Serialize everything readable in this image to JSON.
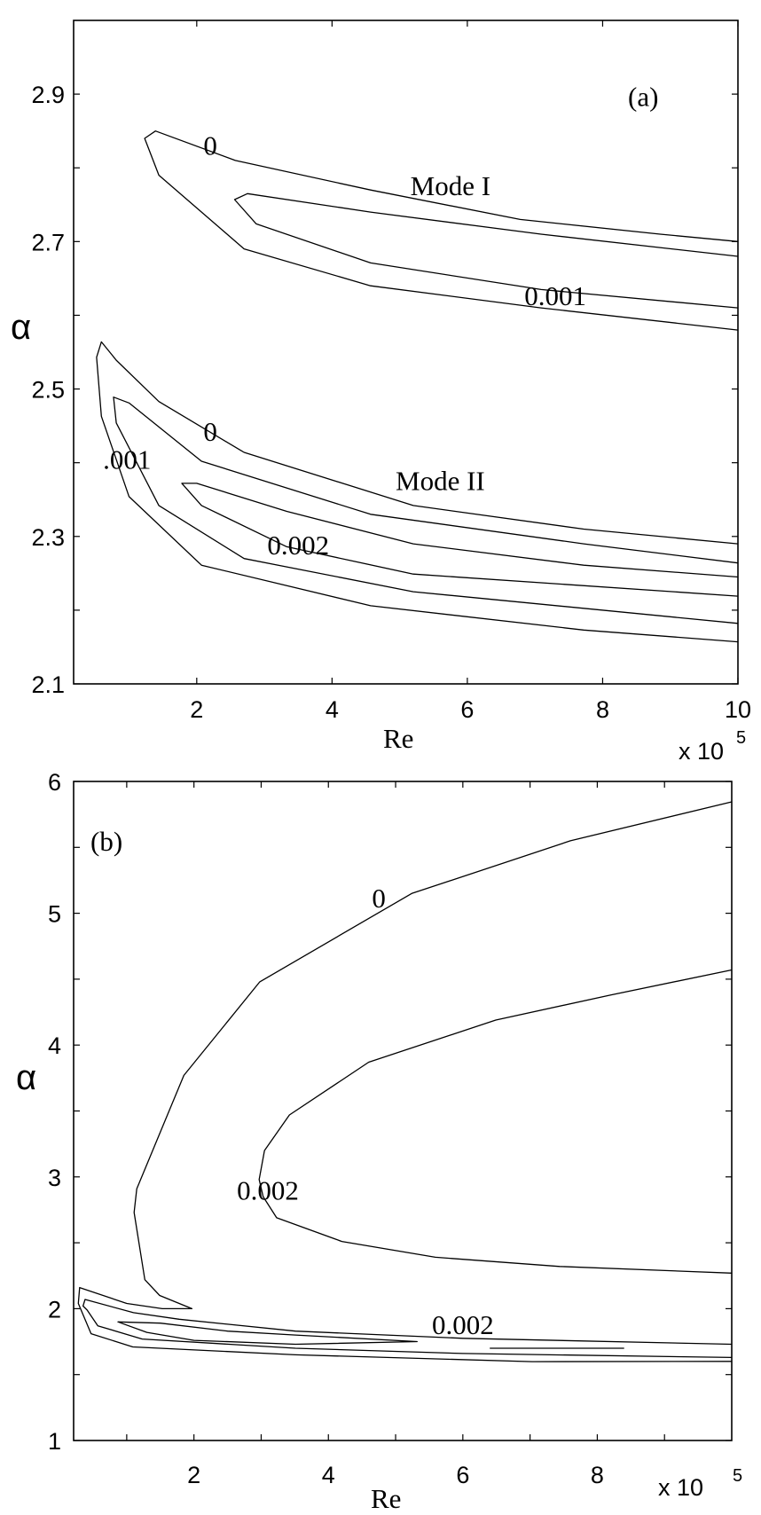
{
  "chart_data": [
    {
      "id": "a",
      "type": "contour",
      "panel_label": "(a)",
      "xlabel": "Re",
      "ylabel": "α",
      "x_multiplier": "x 10",
      "x_multiplier_exp": "5",
      "xlim": [
        0.18,
        10
      ],
      "ylim": [
        2.1,
        3.0
      ],
      "xticks": [
        2,
        4,
        6,
        8,
        10
      ],
      "xtick_labels": [
        "2",
        "4",
        "6",
        "8",
        "10"
      ],
      "yticks": [
        2.1,
        2.2,
        2.3,
        2.4,
        2.5,
        2.6,
        2.7,
        2.8,
        2.9
      ],
      "ytick_labels": [
        "2.1",
        "",
        "2.3",
        "",
        "2.5",
        "",
        "2.7",
        "",
        "2.9"
      ],
      "grid": false,
      "annotations": [
        {
          "text": "(a)",
          "x": 8.6,
          "y": 2.897
        },
        {
          "text": "0",
          "x": 2.2,
          "y": 2.831
        },
        {
          "text": "Mode I",
          "x": 5.75,
          "y": 2.776
        },
        {
          "text": "0.001",
          "x": 7.3,
          "y": 2.627
        },
        {
          "text": "0",
          "x": 2.2,
          "y": 2.443
        },
        {
          "text": ".001",
          "x": 0.97,
          "y": 2.405
        },
        {
          "text": "Mode II",
          "x": 5.6,
          "y": 2.376
        },
        {
          "text": "0.002",
          "x": 3.5,
          "y": 2.289
        }
      ],
      "contours": [
        {
          "mode": "Mode I",
          "level": "0",
          "closed": false,
          "points": [
            [
              10,
              2.7
            ],
            [
              8.85,
              2.71
            ],
            [
              6.78,
              2.73
            ],
            [
              4.57,
              2.77
            ],
            [
              2.57,
              2.81
            ],
            [
              1.39,
              2.85
            ],
            [
              1.23,
              2.84
            ],
            [
              1.44,
              2.79
            ],
            [
              2.7,
              2.69
            ],
            [
              4.57,
              2.64
            ],
            [
              7.09,
              2.61
            ],
            [
              10,
              2.58
            ]
          ]
        },
        {
          "mode": "Mode I",
          "level": "0.001",
          "closed": false,
          "points": [
            [
              10,
              2.68
            ],
            [
              7.09,
              2.71
            ],
            [
              4.57,
              2.74
            ],
            [
              2.75,
              2.765
            ],
            [
              2.56,
              2.757
            ],
            [
              2.88,
              2.724
            ],
            [
              4.57,
              2.671
            ],
            [
              7.09,
              2.635
            ],
            [
              10,
              2.61
            ]
          ]
        },
        {
          "mode": "Mode II",
          "level": "0",
          "closed": false,
          "points": [
            [
              10,
              2.29
            ],
            [
              7.72,
              2.31
            ],
            [
              5.2,
              2.342
            ],
            [
              2.7,
              2.414
            ],
            [
              1.44,
              2.483
            ],
            [
              0.81,
              2.539
            ],
            [
              0.59,
              2.564
            ],
            [
              0.52,
              2.543
            ],
            [
              0.59,
              2.463
            ],
            [
              1.0,
              2.354
            ],
            [
              2.07,
              2.261
            ],
            [
              4.57,
              2.206
            ],
            [
              7.72,
              2.173
            ],
            [
              10,
              2.157
            ]
          ]
        },
        {
          "mode": "Mode II",
          "level": "0.001",
          "closed": false,
          "points": [
            [
              10,
              2.264
            ],
            [
              7.72,
              2.29
            ],
            [
              4.57,
              2.33
            ],
            [
              2.07,
              2.402
            ],
            [
              1.0,
              2.481
            ],
            [
              0.77,
              2.489
            ],
            [
              0.81,
              2.454
            ],
            [
              1.44,
              2.342
            ],
            [
              2.7,
              2.27
            ],
            [
              5.2,
              2.225
            ],
            [
              10,
              2.182
            ]
          ]
        },
        {
          "mode": "Mode II",
          "level": "0.002",
          "closed": false,
          "points": [
            [
              10,
              2.245
            ],
            [
              7.72,
              2.261
            ],
            [
              5.2,
              2.29
            ],
            [
              3.33,
              2.334
            ],
            [
              2.0,
              2.372
            ],
            [
              1.78,
              2.372
            ],
            [
              2.07,
              2.342
            ],
            [
              3.33,
              2.286
            ],
            [
              5.2,
              2.249
            ],
            [
              10,
              2.219
            ]
          ]
        }
      ]
    },
    {
      "id": "b",
      "type": "contour",
      "panel_label": "(b)",
      "xlabel": "Re",
      "ylabel": "α",
      "x_multiplier": "x 10",
      "x_multiplier_exp": "5",
      "xlim": [
        0.21,
        10
      ],
      "ylim": [
        1,
        6
      ],
      "xticks": [
        1,
        2,
        3,
        4,
        5,
        6,
        7,
        8,
        9
      ],
      "xtick_labels": [
        "",
        "2",
        "",
        "4",
        "",
        "6",
        "",
        "8",
        ""
      ],
      "yticks": [
        1,
        1.5,
        2,
        2.5,
        3,
        3.5,
        4,
        4.5,
        5,
        5.5,
        6
      ],
      "ytick_labels": [
        "1",
        "",
        "2",
        "",
        "3",
        "",
        "4",
        "",
        "5",
        "",
        "6"
      ],
      "grid": false,
      "annotations": [
        {
          "text": "(b)",
          "x": 0.7,
          "y": 5.55
        },
        {
          "text": "0",
          "x": 4.75,
          "y": 5.12
        },
        {
          "text": "0.002",
          "x": 3.1,
          "y": 2.9
        },
        {
          "text": "0.002",
          "x": 6.0,
          "y": 1.88
        }
      ],
      "contours": [
        {
          "level": "0",
          "closed": false,
          "points": [
            [
              10,
              5.845
            ],
            [
              7.6,
              5.55
            ],
            [
              5.24,
              5.15
            ],
            [
              2.98,
              4.48
            ],
            [
              1.85,
              3.77
            ],
            [
              1.15,
              2.91
            ],
            [
              1.11,
              2.73
            ],
            [
              1.27,
              2.22
            ],
            [
              1.49,
              2.1
            ],
            [
              1.97,
              2.0
            ],
            [
              1.53,
              2.0
            ],
            [
              1.0,
              2.04
            ],
            [
              0.3,
              2.16
            ],
            [
              0.28,
              2.04
            ],
            [
              0.47,
              1.81
            ],
            [
              1.09,
              1.71
            ],
            [
              3.51,
              1.65
            ],
            [
              7.03,
              1.598
            ],
            [
              10,
              1.6
            ]
          ]
        },
        {
          "level": "0.002",
          "closed": false,
          "points": [
            [
              10,
              4.57
            ],
            [
              8.2,
              4.38
            ],
            [
              6.49,
              4.19
            ],
            [
              4.6,
              3.87
            ],
            [
              3.42,
              3.47
            ],
            [
              3.05,
              3.2
            ],
            [
              2.97,
              2.98
            ],
            [
              3.03,
              2.85
            ],
            [
              3.23,
              2.69
            ],
            [
              4.2,
              2.51
            ],
            [
              5.59,
              2.39
            ],
            [
              7.44,
              2.32
            ],
            [
              10,
              2.27
            ]
          ]
        },
        {
          "level": "0.002",
          "closed": false,
          "points": [
            [
              10,
              1.73
            ],
            [
              6.0,
              1.775
            ],
            [
              3.51,
              1.83
            ],
            [
              1.78,
              1.92
            ],
            [
              1.1,
              1.97
            ],
            [
              0.38,
              2.07
            ],
            [
              0.35,
              2.02
            ],
            [
              0.41,
              1.99
            ],
            [
              0.57,
              1.87
            ],
            [
              1.23,
              1.77
            ],
            [
              3.51,
              1.7
            ],
            [
              6.0,
              1.66
            ],
            [
              10,
              1.63
            ]
          ]
        },
        {
          "level": "0.002",
          "closed": true,
          "points": [
            [
              0.87,
              1.9
            ],
            [
              1.5,
              1.89
            ],
            [
              2.5,
              1.83
            ],
            [
              3.51,
              1.8
            ],
            [
              5.32,
              1.75
            ],
            [
              3.51,
              1.73
            ],
            [
              2.0,
              1.76
            ],
            [
              1.3,
              1.82
            ],
            [
              0.87,
              1.9
            ]
          ]
        },
        {
          "level": "0.002",
          "closed": false,
          "points": [
            [
              6.4,
              1.7
            ],
            [
              8.4,
              1.7
            ]
          ]
        }
      ]
    }
  ]
}
